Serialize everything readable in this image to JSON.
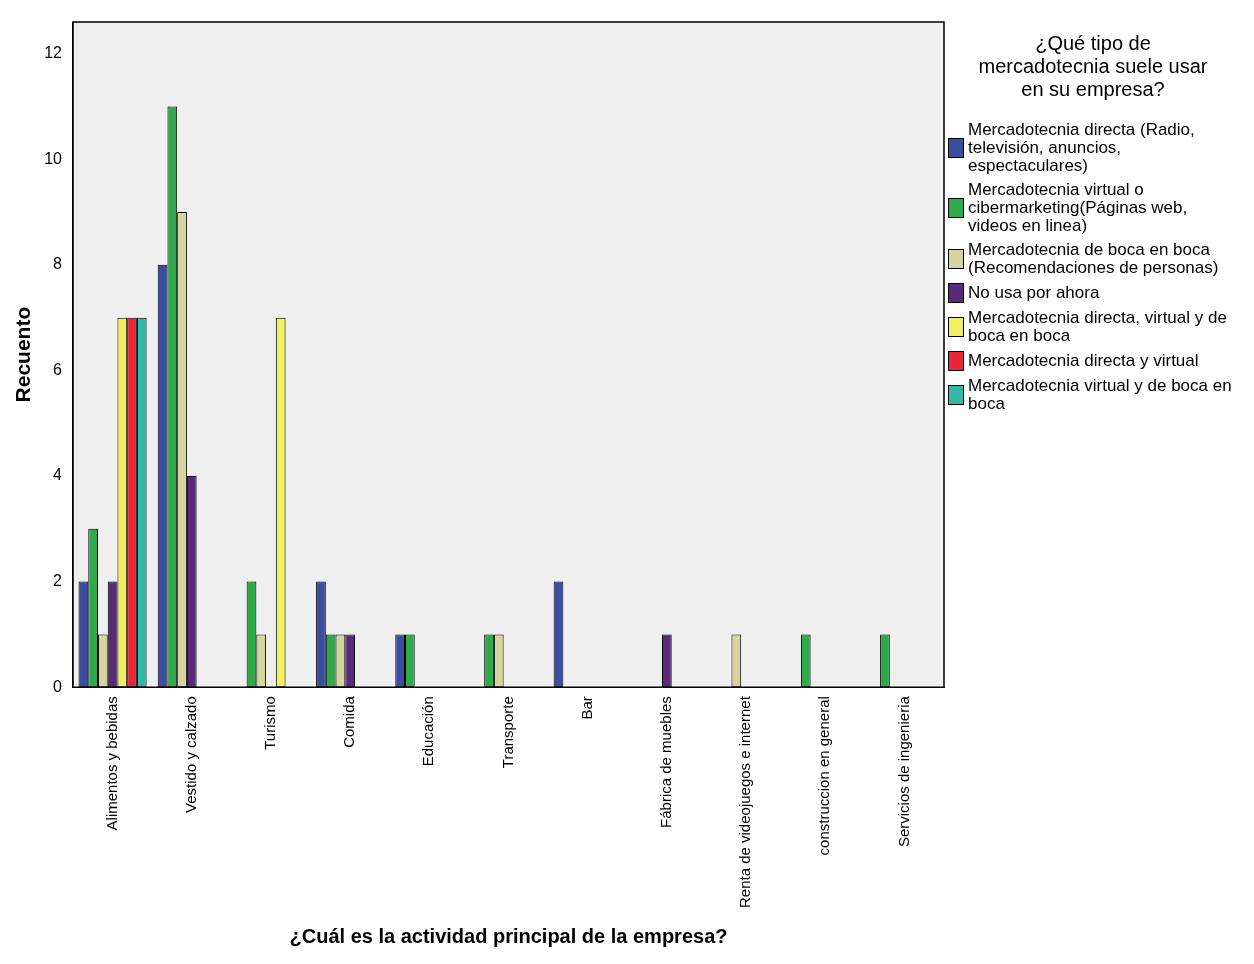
{
  "chart_data": {
    "type": "bar",
    "xlabel": "¿Cuál es la actividad principal de la empresa?",
    "ylabel": "Recuento",
    "legend_title": "¿Qué tipo de mercadotecnia suele usar en su empresa?",
    "legend": "right",
    "categories": [
      "Alimentos y bebidas",
      "Vestido y calzado",
      "Turismo",
      "Comida",
      "Educación",
      "Transporte",
      "Bar",
      "Fábrica de muebles",
      "Renta de videojuegos e internet",
      "construccion en general",
      "Servicios de ingenieria"
    ],
    "ylim": [
      0,
      12.6
    ],
    "yticks": [
      0,
      2,
      4,
      6,
      8,
      10,
      12
    ],
    "grid": false,
    "series": [
      {
        "name": "Mercadotecnia directa (Radio, televisión, anuncios, espectaculares)",
        "color": "#3a4ea0",
        "values": [
          2,
          8,
          null,
          2,
          1,
          null,
          2,
          null,
          null,
          null,
          null
        ]
      },
      {
        "name": "Mercadotecnia virtual o cibermarketing(Páginas web, videos en linea)",
        "color": "#2eaa4a",
        "values": [
          3,
          11,
          2,
          1,
          1,
          1,
          null,
          null,
          null,
          1,
          1
        ]
      },
      {
        "name": "Mercadotecnia de boca en boca (Recomendaciones de personas)",
        "color": "#d8d4a0",
        "values": [
          1,
          9,
          1,
          1,
          null,
          1,
          null,
          null,
          1,
          null,
          null
        ]
      },
      {
        "name": "No usa por ahora",
        "color": "#5a2a7a",
        "values": [
          2,
          4,
          null,
          1,
          null,
          null,
          null,
          1,
          null,
          null,
          null
        ]
      },
      {
        "name": "Mercadotecnia directa, virtual y de boca en boca",
        "color": "#f0f060",
        "values": [
          7,
          null,
          7,
          null,
          null,
          null,
          null,
          null,
          null,
          null,
          null
        ]
      },
      {
        "name": "Mercadotecnia directa y virtual",
        "color": "#e8283a",
        "values": [
          7,
          null,
          null,
          null,
          null,
          null,
          null,
          null,
          null,
          null,
          null
        ]
      },
      {
        "name": "Mercadotecnia virtual y de boca en boca",
        "color": "#30b8a8",
        "values": [
          7,
          null,
          null,
          null,
          null,
          null,
          null,
          null,
          null,
          null,
          null
        ]
      }
    ]
  }
}
